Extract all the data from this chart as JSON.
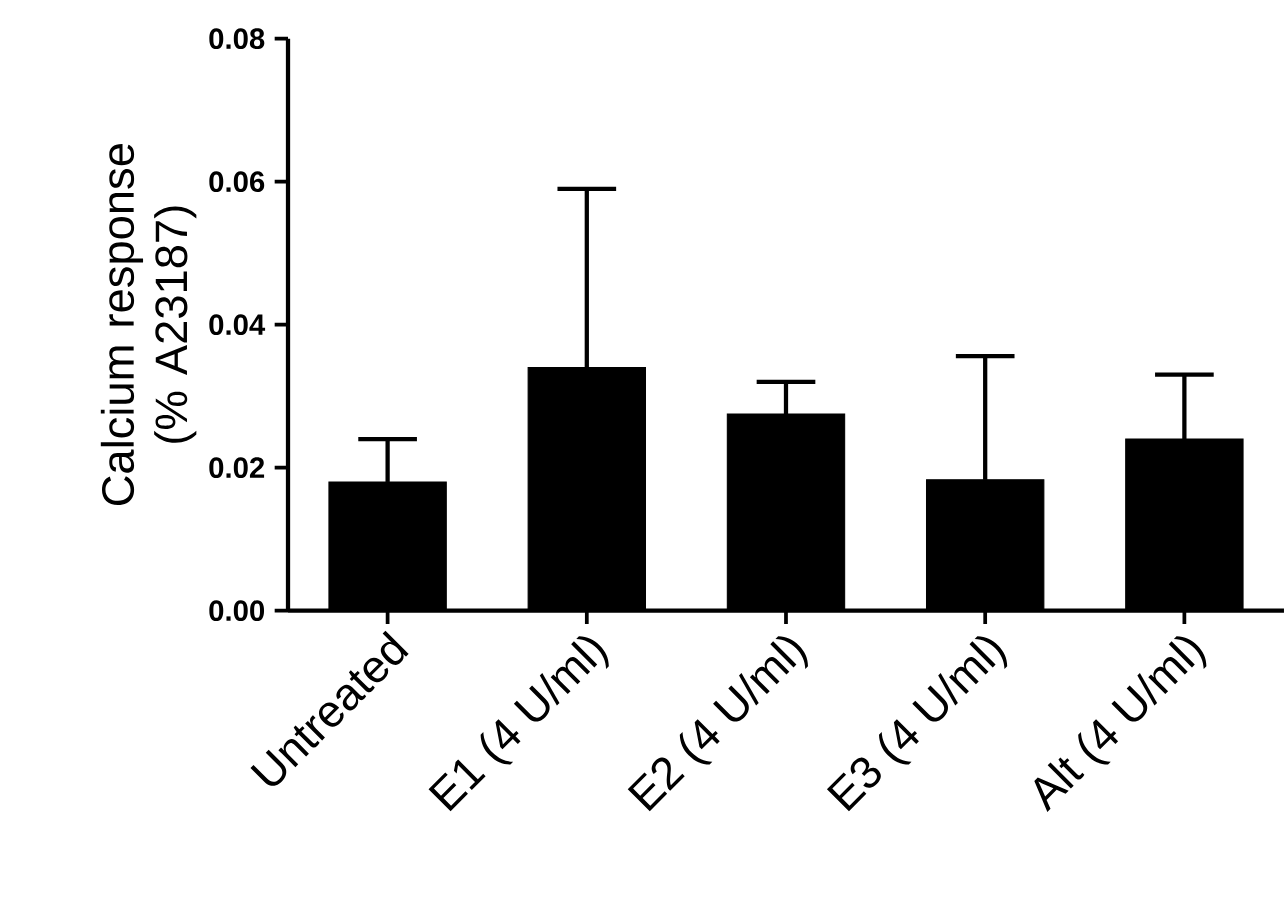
{
  "chart_data": {
    "type": "bar",
    "ylabel": "Calcium response (% A23187)",
    "categories": [
      "Untreated",
      "E1 (4 U/ml)",
      "E2 (4 U/ml)",
      "E3 (4 U/ml)",
      "Alt (4 U/ml)"
    ],
    "values": [
      0.018,
      0.034,
      0.0275,
      0.0183,
      0.024
    ],
    "errors": [
      0.006,
      0.025,
      0.0045,
      0.0173,
      0.009
    ],
    "color": "#000000",
    "ylim": [
      0,
      0.08
    ],
    "yticks": [
      {
        "value": 0,
        "label": "0.00"
      },
      {
        "value": 0.02,
        "label": "0.02"
      },
      {
        "value": 0.04,
        "label": "0.04"
      },
      {
        "value": 0.06,
        "label": "0.06"
      },
      {
        "value": 0.08,
        "label": "0.08"
      }
    ]
  }
}
